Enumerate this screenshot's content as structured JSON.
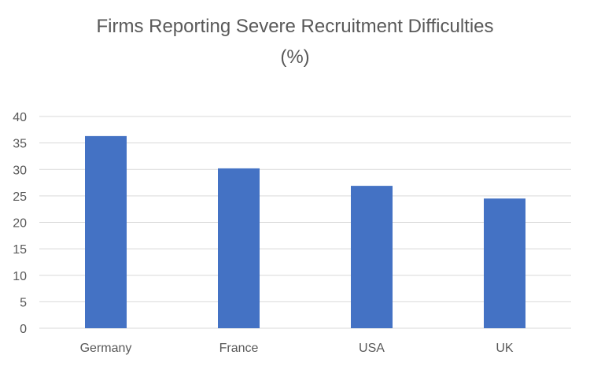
{
  "chart_data": {
    "type": "bar",
    "title": "Firms Reporting Severe Recruitment Difficulties",
    "subtitle": "(%)",
    "categories": [
      "Germany",
      "France",
      "USA",
      "UK"
    ],
    "values": [
      36.3,
      30.2,
      26.9,
      24.5
    ],
    "xlabel": "",
    "ylabel": "",
    "ylim": [
      0,
      40
    ],
    "yticks": [
      "0",
      "5",
      "10",
      "15",
      "20",
      "25",
      "30",
      "35",
      "40"
    ],
    "grid": true,
    "legend": "none",
    "bar_color": "#4472C4",
    "gridline_color": "#D9D9D9",
    "text_color": "#595959"
  }
}
